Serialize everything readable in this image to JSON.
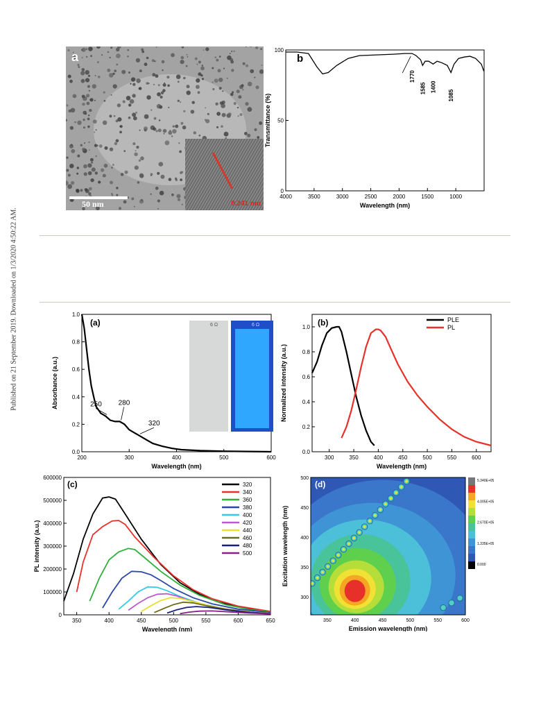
{
  "side_note": "Published on 21 September 2019. Downloaded on 1/3/2020 4:50:22 AM.",
  "tem": {
    "label": "a",
    "scale_bar": "50 nm",
    "lattice": "0.241 nm"
  },
  "photo": {
    "cap_left": "6 Ω",
    "cap_right": "6 Ω"
  },
  "colors": {
    "black_series": "#000000",
    "red_series": "#e8302a"
  },
  "chart_data": [
    {
      "panel": "b",
      "type": "line",
      "xlabel": "Wavelength (nm)",
      "ylabel": "Transmittance (%)",
      "xlim": [
        4000,
        500
      ],
      "ylim": [
        0,
        100
      ],
      "xticks": [
        4000,
        3500,
        3000,
        2500,
        2000,
        1500,
        1000
      ],
      "yticks": [
        0,
        50,
        100
      ],
      "annotations": [
        "1770",
        "1585",
        "1400",
        "1085"
      ],
      "x": [
        4000,
        3800,
        3600,
        3450,
        3350,
        3250,
        3100,
        2900,
        2700,
        2400,
        2100,
        1900,
        1770,
        1700,
        1620,
        1585,
        1540,
        1480,
        1400,
        1330,
        1250,
        1150,
        1085,
        1030,
        950,
        850,
        750,
        650,
        550,
        505
      ],
      "y": [
        98.5,
        98.5,
        97.5,
        88,
        83,
        84,
        89,
        94,
        96,
        96.5,
        97,
        97.5,
        97.5,
        96,
        93,
        89,
        92,
        92,
        90,
        92,
        91,
        89,
        84,
        90,
        94,
        95,
        95.5,
        94,
        90,
        85
      ]
    },
    {
      "panel": "(a)",
      "type": "line",
      "xlabel": "Wavelength (nm)",
      "ylabel": "Absorbance (a.u.)",
      "xlim": [
        200,
        600
      ],
      "ylim": [
        0,
        1.0
      ],
      "xticks": [
        200,
        300,
        400,
        500,
        600
      ],
      "yticks": [
        0.0,
        0.2,
        0.4,
        0.6,
        0.8,
        1.0
      ],
      "annotations": [
        "250",
        "280",
        "320"
      ],
      "x": [
        200,
        205,
        210,
        215,
        220,
        225,
        230,
        240,
        250,
        260,
        270,
        280,
        290,
        300,
        310,
        320,
        330,
        340,
        350,
        370,
        390,
        410,
        450,
        500,
        550,
        600
      ],
      "y": [
        1.0,
        0.9,
        0.75,
        0.6,
        0.48,
        0.4,
        0.33,
        0.28,
        0.26,
        0.23,
        0.22,
        0.22,
        0.2,
        0.16,
        0.14,
        0.12,
        0.1,
        0.08,
        0.06,
        0.04,
        0.025,
        0.015,
        0.008,
        0.004,
        0.002,
        0.0
      ]
    },
    {
      "panel": "(b)",
      "type": "line",
      "xlabel": "Wavelength (nm)",
      "ylabel": "Normalized intensity (a.u.)",
      "xlim": [
        265,
        630
      ],
      "ylim": [
        0,
        1.1
      ],
      "xticks": [
        300,
        350,
        400,
        450,
        500,
        550,
        600
      ],
      "yticks": [
        0.0,
        0.2,
        0.4,
        0.6,
        0.8,
        1.0
      ],
      "series": [
        {
          "name": "PLE",
          "x": [
            265,
            275,
            285,
            295,
            305,
            315,
            320,
            325,
            335,
            345,
            355,
            365,
            375,
            385,
            392
          ],
          "y": [
            0.63,
            0.72,
            0.85,
            0.95,
            0.99,
            1.0,
            1.0,
            0.96,
            0.8,
            0.62,
            0.44,
            0.29,
            0.17,
            0.08,
            0.05
          ]
        },
        {
          "name": "PL",
          "x": [
            325,
            335,
            345,
            355,
            365,
            375,
            385,
            395,
            400,
            405,
            415,
            425,
            440,
            460,
            480,
            500,
            525,
            550,
            575,
            600,
            630
          ],
          "y": [
            0.11,
            0.2,
            0.33,
            0.5,
            0.68,
            0.84,
            0.95,
            0.98,
            0.98,
            0.97,
            0.92,
            0.83,
            0.7,
            0.56,
            0.45,
            0.36,
            0.26,
            0.18,
            0.12,
            0.08,
            0.05
          ]
        }
      ]
    },
    {
      "panel": "(c)",
      "type": "line",
      "xlabel": "Wavelength (nm)",
      "ylabel": "PL intensity (a.u.)",
      "xlim": [
        330,
        650
      ],
      "ylim": [
        0,
        600000
      ],
      "xticks": [
        350,
        400,
        450,
        500,
        550,
        600,
        650
      ],
      "yticks": [
        0,
        100000,
        200000,
        300000,
        400000,
        500000,
        600000
      ],
      "series": [
        {
          "name": "320",
          "color": "#000000",
          "x": [
            330,
            345,
            360,
            375,
            390,
            400,
            410,
            425,
            450,
            480,
            510,
            540,
            570,
            600,
            630,
            650
          ],
          "y": [
            60000,
            180000,
            330000,
            440000,
            510000,
            515000,
            505000,
            440000,
            330000,
            220000,
            140000,
            90000,
            55000,
            35000,
            22000,
            15000
          ]
        },
        {
          "name": "340",
          "color": "#e8302a",
          "x": [
            350,
            360,
            375,
            390,
            405,
            415,
            425,
            440,
            470,
            500,
            530,
            560,
            600,
            650
          ],
          "y": [
            100000,
            230000,
            350000,
            385000,
            410000,
            412000,
            395000,
            340000,
            250000,
            170000,
            110000,
            70000,
            38000,
            15000
          ]
        },
        {
          "name": "360",
          "color": "#2fae3a",
          "x": [
            370,
            385,
            400,
            415,
            430,
            440,
            455,
            480,
            510,
            540,
            580,
            620,
            650
          ],
          "y": [
            60000,
            160000,
            240000,
            275000,
            290000,
            285000,
            250000,
            190000,
            130000,
            85000,
            45000,
            22000,
            12000
          ]
        },
        {
          "name": "380",
          "color": "#2a47a8",
          "x": [
            390,
            405,
            420,
            435,
            450,
            465,
            480,
            500,
            530,
            560,
            600,
            650
          ],
          "y": [
            30000,
            100000,
            160000,
            190000,
            188000,
            175000,
            150000,
            115000,
            75000,
            48000,
            25000,
            10000
          ]
        },
        {
          "name": "400",
          "color": "#35c9e8",
          "x": [
            415,
            430,
            445,
            460,
            475,
            490,
            510,
            540,
            580,
            620,
            650
          ],
          "y": [
            25000,
            60000,
            100000,
            122000,
            120000,
            105000,
            80000,
            50000,
            25000,
            12000,
            6000
          ]
        },
        {
          "name": "420",
          "color": "#b85ad0",
          "x": [
            430,
            445,
            460,
            475,
            490,
            505,
            525,
            560,
            600,
            650
          ],
          "y": [
            20000,
            50000,
            75000,
            90000,
            92000,
            82000,
            62000,
            35000,
            17000,
            6000
          ]
        },
        {
          "name": "440",
          "color": "#e8e030",
          "x": [
            450,
            465,
            480,
            495,
            510,
            530,
            560,
            600,
            650
          ],
          "y": [
            15000,
            40000,
            62000,
            75000,
            72000,
            58000,
            36000,
            17000,
            6000
          ]
        },
        {
          "name": "460",
          "color": "#6b6b1a",
          "x": [
            470,
            485,
            500,
            515,
            530,
            550,
            580,
            620,
            650
          ],
          "y": [
            10000,
            28000,
            45000,
            55000,
            52000,
            40000,
            25000,
            11000,
            5000
          ]
        },
        {
          "name": "480",
          "color": "#1c1f7a",
          "x": [
            490,
            505,
            520,
            535,
            555,
            580,
            610,
            650
          ],
          "y": [
            8000,
            22000,
            32000,
            36000,
            32000,
            22000,
            12000,
            5000
          ]
        },
        {
          "name": "500",
          "color": "#8a1f8c",
          "x": [
            510,
            525,
            540,
            560,
            585,
            615,
            650
          ],
          "y": [
            5000,
            12000,
            16000,
            17000,
            13000,
            8000,
            4000
          ]
        }
      ]
    },
    {
      "panel": "(d)",
      "type": "heatmap",
      "xlabel": "Emission wavelength (nm)",
      "ylabel": "Excitation wavelength (nm)",
      "xlim": [
        320,
        600
      ],
      "ylim": [
        270,
        500
      ],
      "xticks": [
        350,
        400,
        450,
        500,
        550,
        600
      ],
      "yticks": [
        300,
        350,
        400,
        450,
        500
      ],
      "colorbar_labels": [
        "5.340E+05",
        "4.005E+05",
        "2.670E+05",
        "1.335E+05",
        "0.000"
      ],
      "peak": {
        "x": 400,
        "y": 310
      }
    }
  ]
}
